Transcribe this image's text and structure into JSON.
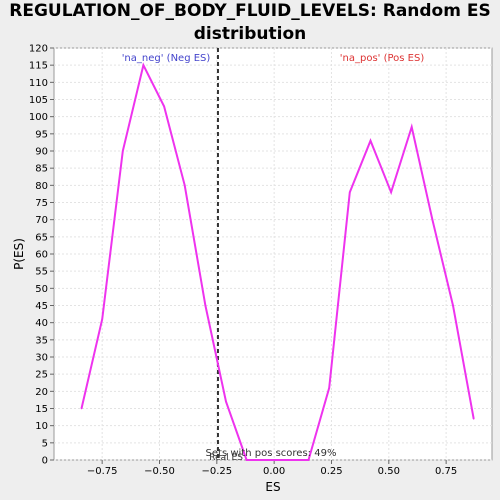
{
  "chart_data": {
    "type": "line",
    "title_lines": [
      "REGULATION_OF_BODY_FLUID_LEVELS: Random ES",
      "distribution"
    ],
    "xlabel": "ES",
    "ylabel": "P(ES)",
    "xlim": [
      -0.96,
      0.95
    ],
    "ylim": [
      0,
      120
    ],
    "x_ticks": [
      -0.75,
      -0.5,
      -0.25,
      0.0,
      0.25,
      0.5,
      0.75
    ],
    "x_tick_labels": [
      "−0.75",
      "−0.50",
      "−0.25",
      "0.00",
      "0.25",
      "0.50",
      "0.75"
    ],
    "y_ticks": [
      0,
      5,
      10,
      15,
      20,
      25,
      30,
      35,
      40,
      45,
      50,
      55,
      60,
      65,
      70,
      75,
      80,
      85,
      90,
      95,
      100,
      105,
      110,
      115,
      120
    ],
    "grid": true,
    "series": [
      {
        "color": "#ee33ee",
        "x": [
          -0.84,
          -0.75,
          -0.66,
          -0.57,
          -0.48,
          -0.39,
          -0.3,
          -0.21,
          -0.12,
          -0.03,
          0.06,
          0.15,
          0.24,
          0.33,
          0.42,
          0.51,
          0.6,
          0.69,
          0.78,
          0.87
        ],
        "y": [
          15,
          41,
          90,
          115,
          103,
          80,
          45,
          17,
          0,
          0,
          0,
          0,
          21,
          78,
          93,
          78,
          97,
          70,
          45,
          12
        ]
      }
    ],
    "annotations": {
      "neg_label": "'na_neg' (Neg ES)",
      "neg_color": "#4444cc",
      "pos_label": "'na_pos' (Pos ES)",
      "pos_color": "#dd3333",
      "real_es_label": "Real ES",
      "real_es_x": -0.245,
      "sets_label": "Sets with pos scores: 49%"
    }
  }
}
